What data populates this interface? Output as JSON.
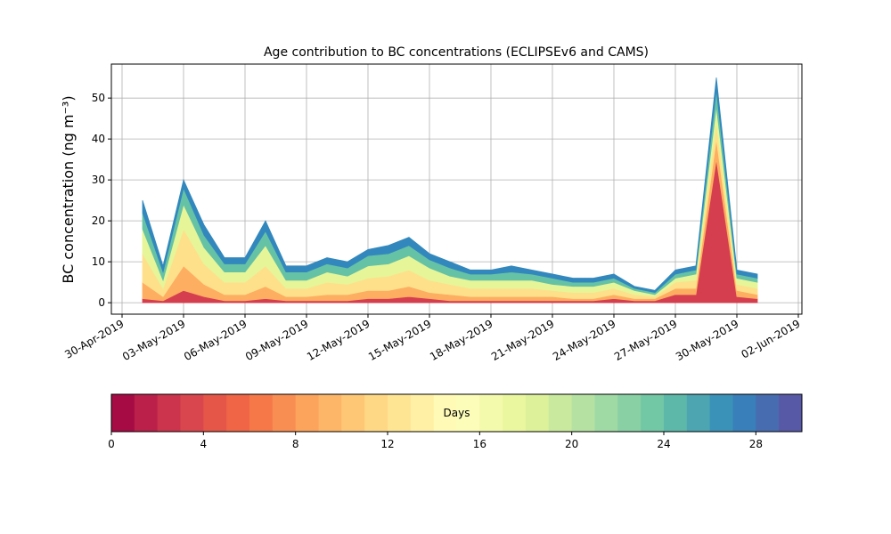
{
  "chart_data": {
    "type": "stacked-area",
    "title": "Age contribution to BC concentrations (ECLIPSEv6 and CAMS)",
    "y_label": "BC concentration (ng m⁻³)",
    "x": [
      "01-May-2019",
      "02-May-2019",
      "03-May-2019",
      "04-May-2019",
      "05-May-2019",
      "06-May-2019",
      "07-May-2019",
      "08-May-2019",
      "09-May-2019",
      "10-May-2019",
      "11-May-2019",
      "12-May-2019",
      "13-May-2019",
      "14-May-2019",
      "15-May-2019",
      "16-May-2019",
      "17-May-2019",
      "18-May-2019",
      "19-May-2019",
      "20-May-2019",
      "21-May-2019",
      "22-May-2019",
      "23-May-2019",
      "24-May-2019",
      "25-May-2019",
      "26-May-2019",
      "27-May-2019",
      "28-May-2019",
      "29-May-2019",
      "30-May-2019",
      "31-May-2019"
    ],
    "series": [
      {
        "color": "#d53e4f",
        "values": [
          1,
          0.5,
          3,
          1.5,
          0.5,
          0.5,
          1,
          0.5,
          0.5,
          0.5,
          0.5,
          1,
          1,
          1.5,
          1,
          0.5,
          0.5,
          0.5,
          0.5,
          0.5,
          0.5,
          0.5,
          0.5,
          1,
          0.5,
          0.5,
          2,
          2,
          35,
          1.5,
          1
        ]
      },
      {
        "color": "#fdae61",
        "values": [
          4,
          1,
          6,
          3,
          1.5,
          1.5,
          3,
          1,
          1,
          1.5,
          1.5,
          2,
          2,
          2.5,
          1.5,
          1.5,
          1,
          1,
          1,
          1,
          1,
          0.5,
          0.5,
          1,
          0.5,
          0.5,
          1.5,
          1.5,
          5,
          1.5,
          1
        ]
      },
      {
        "color": "#fee08b",
        "values": [
          7,
          2,
          9,
          5,
          3,
          3,
          5,
          2,
          2,
          3,
          2.5,
          3,
          3.5,
          4,
          3,
          2.5,
          2,
          2,
          2,
          2,
          1.5,
          1.5,
          1.5,
          1.5,
          1,
          0.5,
          1.5,
          2,
          4,
          1.5,
          1.5
        ]
      },
      {
        "color": "#e6f598",
        "values": [
          6,
          2,
          6,
          4,
          2.5,
          2.5,
          5,
          2,
          2,
          2.5,
          2,
          3,
          3,
          3.5,
          3,
          2,
          2,
          2,
          2,
          2,
          1.5,
          1.5,
          1.5,
          1.5,
          1,
          0.5,
          1,
          1.5,
          4,
          1.5,
          1.5
        ]
      },
      {
        "color": "#66c2a5",
        "values": [
          4,
          2,
          4,
          3,
          2,
          2,
          3.5,
          2,
          2,
          2,
          2,
          2.5,
          2.5,
          2.5,
          2,
          2,
          1.5,
          1.5,
          2,
          1.5,
          1.5,
          1,
          1,
          1,
          0.5,
          0.5,
          1,
          1,
          4,
          1,
          1
        ]
      },
      {
        "color": "#3288bd",
        "values": [
          3,
          1.5,
          2,
          2.5,
          1.5,
          1.5,
          2.5,
          1.5,
          1.5,
          1.5,
          1.5,
          1.5,
          2,
          2,
          1.5,
          1.5,
          1,
          1,
          1.5,
          1,
          1,
          1,
          1,
          1,
          0.5,
          0.5,
          1,
          1,
          3,
          1,
          1
        ]
      }
    ],
    "xlim": [
      "30-Apr-2019",
      "02-Jun-2019"
    ],
    "xticks": [
      "30-Apr-2019",
      "03-May-2019",
      "06-May-2019",
      "09-May-2019",
      "12-May-2019",
      "15-May-2019",
      "18-May-2019",
      "21-May-2019",
      "24-May-2019",
      "27-May-2019",
      "30-May-2019",
      "02-Jun-2019"
    ],
    "ylim": [
      -2.8,
      58.3
    ],
    "yticks": [
      0,
      10,
      20,
      30,
      40,
      50
    ],
    "grid": true,
    "colorbar": {
      "label": "Days",
      "lim": [
        0,
        30
      ],
      "ticks": [
        0,
        4,
        8,
        12,
        16,
        20,
        24,
        28
      ],
      "levels": 30,
      "colors": [
        "#9e0142",
        "#d53e4f",
        "#f46d43",
        "#fdae61",
        "#fee08b",
        "#ffffbf",
        "#e6f598",
        "#abdda4",
        "#66c2a5",
        "#3288bd",
        "#5e4fa2"
      ]
    }
  }
}
